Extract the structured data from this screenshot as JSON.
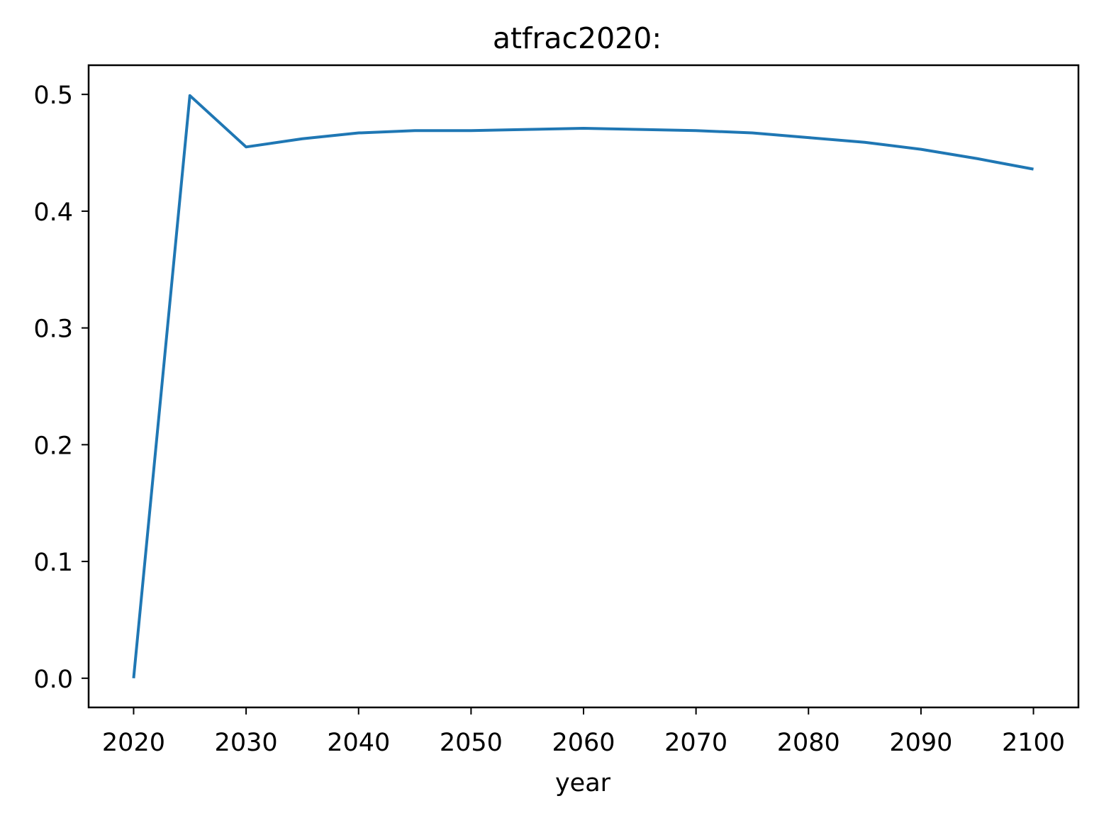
{
  "chart_data": {
    "type": "line",
    "title": "atfrac2020:",
    "xlabel": "year",
    "ylabel": "",
    "xlim": [
      2016,
      2104
    ],
    "ylim": [
      -0.025,
      0.525
    ],
    "x_ticks": [
      2020,
      2030,
      2040,
      2050,
      2060,
      2070,
      2080,
      2090,
      2100
    ],
    "x_tick_labels": [
      "2020",
      "2030",
      "2040",
      "2050",
      "2060",
      "2070",
      "2080",
      "2090",
      "2100"
    ],
    "y_ticks": [
      0.0,
      0.1,
      0.2,
      0.3,
      0.4,
      0.5
    ],
    "y_tick_labels": [
      "0.0",
      "0.1",
      "0.2",
      "0.3",
      "0.4",
      "0.5"
    ],
    "grid": false,
    "legend": "none",
    "colors": {
      "line": "#1f77b4",
      "axes": "#000000",
      "background": "#ffffff"
    },
    "x": [
      2020,
      2025,
      2030,
      2035,
      2040,
      2045,
      2050,
      2055,
      2060,
      2065,
      2070,
      2075,
      2080,
      2085,
      2090,
      2095,
      2100
    ],
    "series": [
      {
        "values": [
          0.0,
          0.499,
          0.455,
          0.462,
          0.467,
          0.469,
          0.469,
          0.47,
          0.471,
          0.47,
          0.469,
          0.467,
          0.463,
          0.459,
          0.453,
          0.445,
          0.436
        ]
      }
    ]
  }
}
